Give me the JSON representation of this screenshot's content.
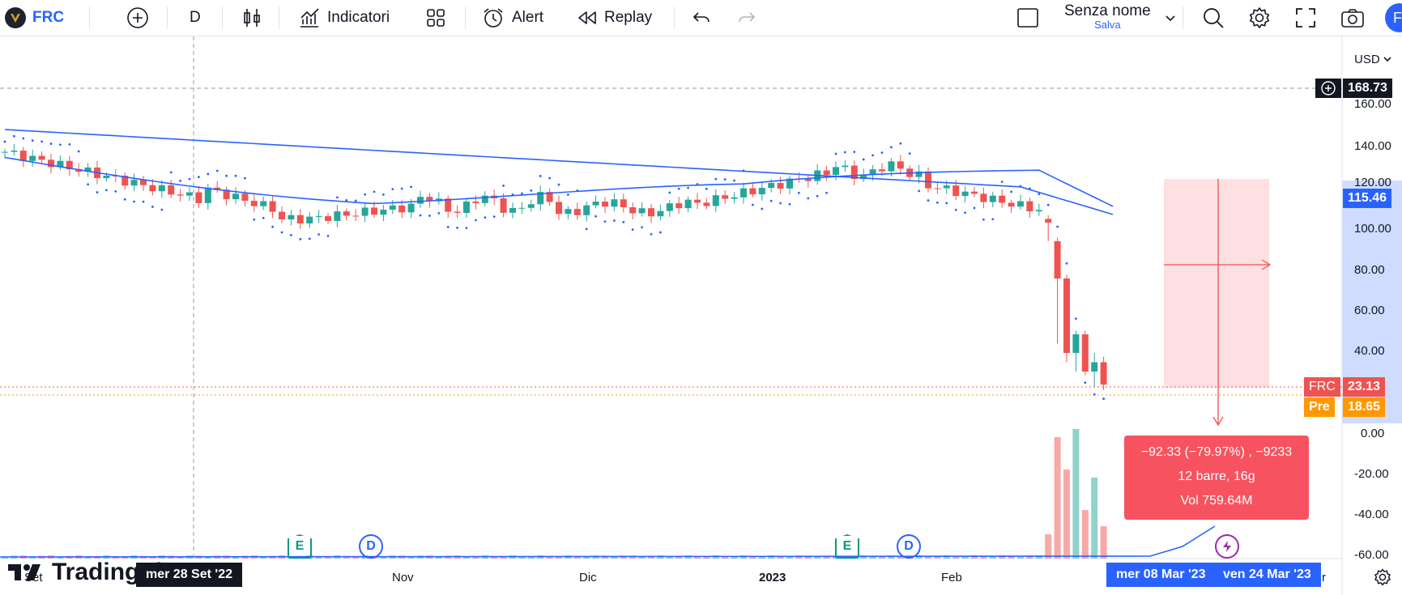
{
  "toolbar": {
    "symbol": "FRC",
    "interval": "D",
    "indicators_label": "Indicatori",
    "alert_label": "Alert",
    "replay_label": "Replay",
    "layout_name": "Senza nome",
    "layout_status": "Salva",
    "avatar_letter": "F"
  },
  "price_axis": {
    "currency": "USD",
    "ticks": [
      "160.00",
      "140.00",
      "120.00",
      "100.00",
      "80.00",
      "60.00",
      "40.00",
      "0.00",
      "-20.00",
      "-40.00",
      "-60.00"
    ]
  },
  "time_axis": {
    "ticks": [
      "Set",
      "Nov",
      "Dic",
      "2023",
      "Feb",
      "r"
    ],
    "crosshair_date": "mer 28 Set '22",
    "range_start": "mer 08 Mar '23",
    "range_end": "ven 24 Mar '23"
  },
  "price_tags": {
    "crosshair_price": "168.73",
    "range_top": "115.46",
    "last_label": "FRC",
    "last_price": "23.13",
    "pre_label": "Pre",
    "pre_price": "18.65"
  },
  "measure_tooltip": {
    "line1": "−92.33 (−79.97%) , −9233",
    "line2": "12 barre, 16g",
    "line3": "Vol 759.64M"
  },
  "events": {
    "earnings": "E",
    "dividend": "D"
  },
  "brand": "TradingView",
  "colors": {
    "up": "#26a69a",
    "down": "#ef5350",
    "accent": "#2962ff",
    "sma": "#2962ff",
    "range": "#f7525f",
    "pre": "#ff9800"
  }
}
